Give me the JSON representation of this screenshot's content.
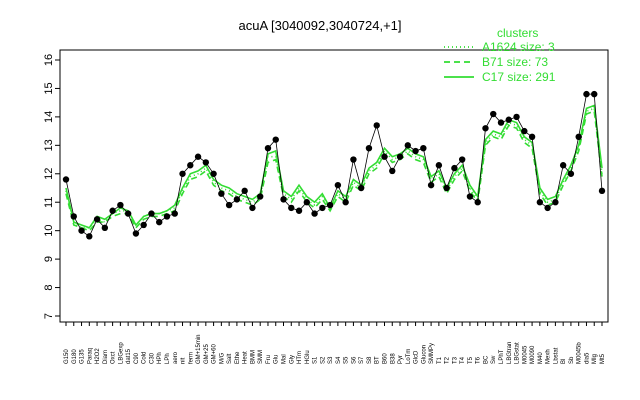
{
  "chart_data": {
    "type": "line",
    "title": "acuA [3040092,3040724,+1]",
    "xlabel": "",
    "ylabel": "",
    "ylim": [
      7,
      16
    ],
    "yticks": [
      7,
      8,
      9,
      10,
      11,
      12,
      13,
      14,
      15,
      16
    ],
    "accent_color": "#33dd33",
    "point_color": "#000000",
    "legend": {
      "title": "clusters",
      "placement": "top-right",
      "items": [
        {
          "label": "A1624 size: 3",
          "style": "dotted"
        },
        {
          "label": "B71 size: 73",
          "style": "dashed"
        },
        {
          "label": "C17 size: 291",
          "style": "solid"
        }
      ]
    },
    "x_tick_labels": [
      "G150",
      "G180",
      "G135",
      "Paraq",
      "H2O2",
      "Diam",
      "Oxct",
      "LBGexp",
      "dat15",
      "C90",
      "Cold",
      "C30",
      "HPh",
      "LPh",
      "aero",
      "nit",
      "ferm",
      "GM+15min",
      "GM+25",
      "GM+60",
      "M/G",
      "Salt",
      "Ethe",
      "Heat",
      "BMM",
      "SMM",
      "Fru",
      "Glu",
      "Mal",
      "Gly",
      "HTm",
      "HGlu",
      "S1",
      "S2",
      "S3",
      "S4",
      "S5",
      "S6",
      "S7",
      "S8",
      "BT",
      "B60",
      "B38",
      "Pyr",
      "LoTm",
      "GlcD",
      "Glucon",
      "SMMPy",
      "T1",
      "T2",
      "T3",
      "T4",
      "T5",
      "T6",
      "BC",
      "Sw",
      "LPhT",
      "LBGtran",
      "LBGstat",
      "M0045",
      "M0090",
      "M40",
      "Mexh",
      "Lbstat",
      "Bl",
      "Sb",
      "M0045b",
      "dia5",
      "MIg",
      "Mt5"
    ],
    "series": [
      {
        "name": "C17 size: 291",
        "values": [
          11.5,
          10.3,
          10.2,
          10.1,
          10.5,
          10.4,
          10.6,
          10.8,
          10.7,
          10.2,
          10.5,
          10.6,
          10.6,
          10.7,
          10.9,
          11.5,
          12.0,
          12.1,
          12.3,
          11.8,
          11.6,
          11.5,
          11.3,
          11.2,
          11.1,
          11.3,
          12.7,
          12.8,
          11.4,
          11.2,
          11.6,
          11.2,
          11.0,
          11.3,
          10.8,
          11.4,
          11.2,
          11.8,
          11.6,
          12.2,
          12.4,
          12.9,
          12.6,
          12.7,
          12.9,
          12.7,
          12.6,
          11.9,
          12.1,
          11.5,
          12.0,
          12.3,
          11.6,
          11.2,
          13.2,
          13.5,
          13.4,
          13.9,
          13.8,
          13.3,
          13.1,
          11.5,
          11.1,
          11.2,
          11.8,
          12.3,
          13.0,
          14.3,
          14.4,
          12.2
        ]
      },
      {
        "name": "B71 size: 73",
        "values": [
          11.3,
          10.2,
          10.1,
          10.0,
          10.3,
          10.3,
          10.5,
          10.6,
          10.6,
          10.1,
          10.4,
          10.5,
          10.5,
          10.6,
          10.7,
          11.3,
          11.8,
          11.9,
          12.1,
          11.6,
          11.4,
          11.3,
          11.1,
          11.0,
          10.9,
          11.1,
          12.4,
          12.5,
          11.2,
          11.0,
          11.4,
          11.0,
          10.8,
          11.1,
          10.7,
          11.2,
          11.0,
          11.6,
          11.4,
          12.0,
          12.2,
          12.7,
          12.4,
          12.5,
          12.7,
          12.5,
          12.4,
          11.7,
          11.9,
          11.3,
          11.8,
          12.1,
          11.4,
          11.0,
          13.0,
          13.3,
          13.2,
          13.7,
          13.6,
          13.1,
          12.9,
          11.3,
          10.9,
          11.0,
          11.6,
          12.1,
          12.8,
          14.1,
          14.2,
          11.9
        ]
      },
      {
        "name": "A1624 size: 3",
        "values": [
          11.4,
          10.3,
          10.1,
          10.1,
          10.4,
          10.3,
          10.6,
          10.7,
          10.7,
          10.2,
          10.5,
          10.6,
          10.6,
          10.7,
          10.8,
          11.4,
          11.9,
          12.0,
          12.2,
          11.7,
          11.5,
          11.4,
          11.2,
          11.1,
          11.0,
          11.2,
          12.6,
          12.6,
          11.3,
          11.1,
          11.5,
          11.1,
          10.9,
          11.2,
          10.8,
          11.3,
          11.1,
          11.7,
          11.5,
          12.1,
          12.3,
          12.8,
          12.5,
          12.6,
          12.8,
          12.6,
          12.5,
          11.8,
          12.0,
          11.4,
          11.9,
          12.2,
          11.5,
          11.1,
          13.1,
          13.4,
          13.3,
          13.8,
          13.7,
          13.2,
          13.0,
          11.4,
          11.0,
          11.1,
          11.7,
          12.2,
          12.9,
          14.2,
          14.3,
          12.0
        ]
      },
      {
        "name": "points",
        "values": [
          11.8,
          10.5,
          10.0,
          9.8,
          10.4,
          10.1,
          10.7,
          10.9,
          10.6,
          9.9,
          10.2,
          10.6,
          10.3,
          10.5,
          10.6,
          12.0,
          12.3,
          12.6,
          12.4,
          12.0,
          11.3,
          10.9,
          11.1,
          11.4,
          10.8,
          11.2,
          12.9,
          13.2,
          11.1,
          10.8,
          10.7,
          11.0,
          10.6,
          10.8,
          10.9,
          11.6,
          11.0,
          12.5,
          11.5,
          12.9,
          13.7,
          12.6,
          12.1,
          12.6,
          13.0,
          12.8,
          12.9,
          11.6,
          12.3,
          11.5,
          12.2,
          12.5,
          11.2,
          11.0,
          13.6,
          14.1,
          13.8,
          13.9,
          14.0,
          13.5,
          13.3,
          11.0,
          10.8,
          11.0,
          12.3,
          12.0,
          13.3,
          14.8,
          14.8,
          11.4
        ]
      }
    ]
  }
}
